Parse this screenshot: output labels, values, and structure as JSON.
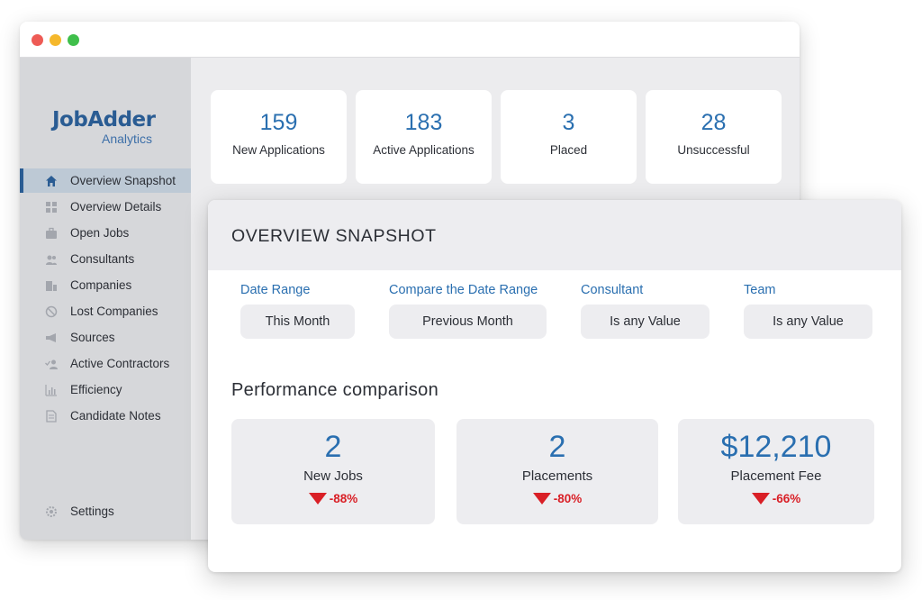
{
  "app": {
    "logo_name": "JobAdder",
    "logo_sub": "Analytics"
  },
  "sidebar": {
    "items": [
      {
        "label": "Overview Snapshot",
        "icon": "home-icon",
        "active": true
      },
      {
        "label": "Overview Details",
        "icon": "grid-icon"
      },
      {
        "label": "Open Jobs",
        "icon": "briefcase-icon"
      },
      {
        "label": "Consultants",
        "icon": "users-icon"
      },
      {
        "label": "Companies",
        "icon": "building-icon"
      },
      {
        "label": "Lost Companies",
        "icon": "block-icon"
      },
      {
        "label": "Sources",
        "icon": "megaphone-icon"
      },
      {
        "label": "Active Contractors",
        "icon": "user-check-icon"
      },
      {
        "label": "Efficiency",
        "icon": "bar-chart-icon"
      },
      {
        "label": "Candidate Notes",
        "icon": "note-icon"
      }
    ],
    "settings_label": "Settings"
  },
  "stats": [
    {
      "value": "159",
      "label": "New Applications"
    },
    {
      "value": "183",
      "label": "Active Applications"
    },
    {
      "value": "3",
      "label": "Placed"
    },
    {
      "value": "28",
      "label": "Unsuccessful"
    }
  ],
  "panel": {
    "title": "OVERVIEW SNAPSHOT",
    "filters": [
      {
        "label": "Date Range",
        "value": "This Month"
      },
      {
        "label": "Compare the Date Range",
        "value": "Previous Month"
      },
      {
        "label": "Consultant",
        "value": "Is any Value"
      },
      {
        "label": "Team",
        "value": "Is any Value"
      }
    ],
    "perf_title": "Performance comparison",
    "perf": [
      {
        "value": "2",
        "label": "New Jobs",
        "change": "-88%"
      },
      {
        "value": "2",
        "label": "Placements",
        "change": "-80%"
      },
      {
        "value": "$12,210",
        "label": "Placement Fee",
        "change": "-66%"
      }
    ]
  },
  "colors": {
    "brand": "#2a5c93",
    "accent": "#2a6fb0",
    "negative": "#d91f26"
  }
}
